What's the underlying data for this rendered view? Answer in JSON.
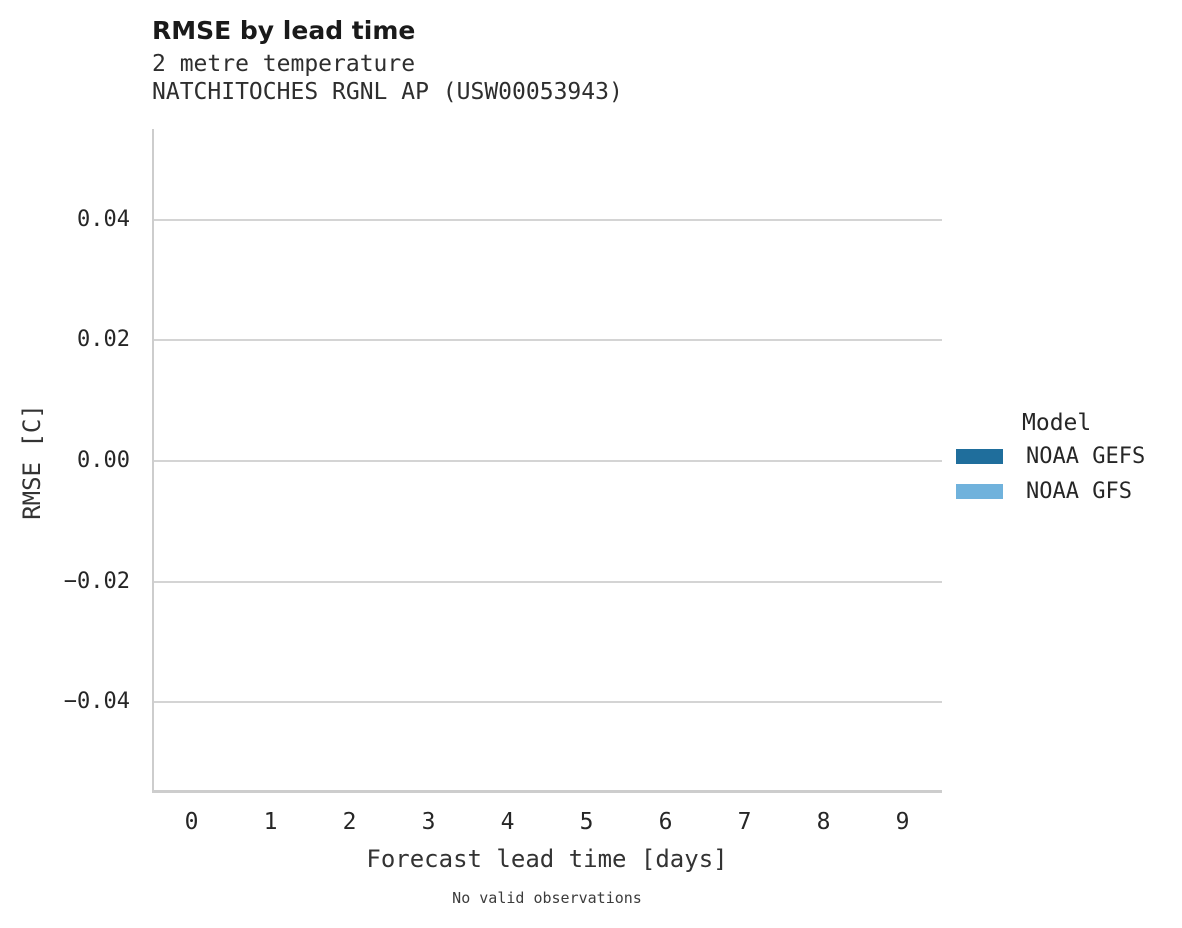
{
  "header": {
    "title": "RMSE by lead time",
    "subtitle_variable": "2 metre temperature",
    "subtitle_station": "NATCHITOCHES RGNL AP (USW00053943)"
  },
  "chart_data": {
    "type": "line",
    "title": "RMSE by lead time",
    "subtitle": "2 metre temperature",
    "station": "NATCHITOCHES RGNL AP (USW00053943)",
    "xlabel": "Forecast lead time [days]",
    "ylabel": "RMSE [C]",
    "xticks": [
      "0",
      "1",
      "2",
      "3",
      "4",
      "5",
      "6",
      "7",
      "8",
      "9"
    ],
    "yticks": [
      {
        "label": "0.04",
        "value": 0.04
      },
      {
        "label": "0.02",
        "value": 0.02
      },
      {
        "label": "0.00",
        "value": 0.0
      },
      {
        "label": "−0.02",
        "value": -0.02
      },
      {
        "label": "−0.04",
        "value": -0.04
      }
    ],
    "xlim_categories": 10,
    "ylim": [
      -0.055,
      0.055
    ],
    "grid": "horizontal",
    "legend_position": "right",
    "series": [
      {
        "name": "NOAA GEFS",
        "color": "#1f6e9c",
        "values": []
      },
      {
        "name": "NOAA GFS",
        "color": "#70b2dc",
        "values": []
      }
    ],
    "annotation": "No valid observations",
    "plot_empty_reason": "No valid observations"
  },
  "legend": {
    "title": "Model"
  },
  "footer": {
    "note": "No valid observations"
  },
  "colors": {
    "series_dark_blue": "#1f6e9c",
    "series_light_blue": "#70b2dc",
    "gridline": "#d4d4d4",
    "axis_spine": "#cdcdcd",
    "text_primary": "#262626"
  }
}
